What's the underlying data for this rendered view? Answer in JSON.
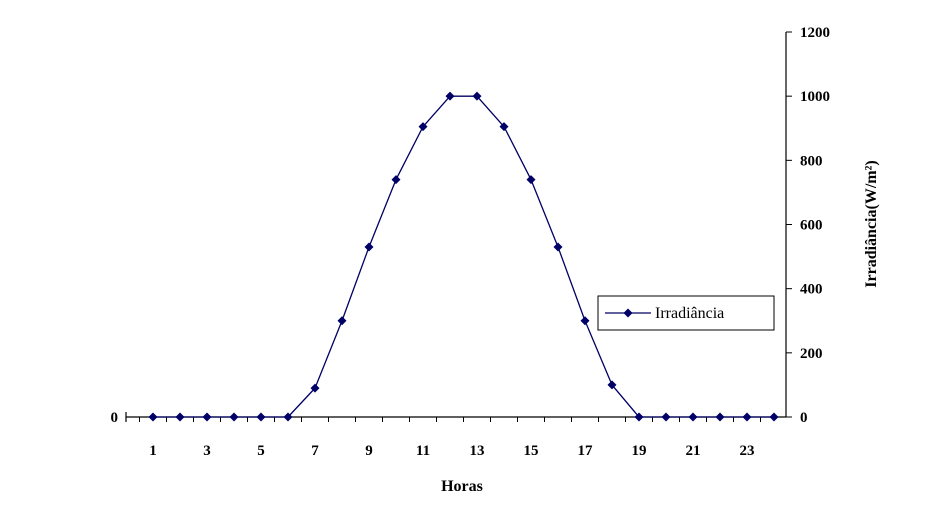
{
  "chart_data": {
    "type": "line",
    "title": "",
    "xlabel": "Horas",
    "ylabel": "Irradiância(W/m²)",
    "x": [
      1,
      2,
      3,
      4,
      5,
      6,
      7,
      8,
      9,
      10,
      11,
      12,
      13,
      14,
      15,
      16,
      17,
      18,
      19,
      20,
      21,
      22,
      23,
      24
    ],
    "x_tick_labels": [
      "1",
      "3",
      "5",
      "7",
      "9",
      "11",
      "13",
      "15",
      "17",
      "19",
      "21",
      "23"
    ],
    "y_ticks_right": [
      "0",
      "200",
      "400",
      "600",
      "800",
      "1000",
      "1200"
    ],
    "y_tick_left": "0",
    "ylim": [
      0,
      1200
    ],
    "series": [
      {
        "name": "Irradiância",
        "values": [
          0,
          0,
          0,
          0,
          0,
          0,
          90,
          300,
          530,
          740,
          905,
          1000,
          1000,
          905,
          740,
          530,
          300,
          100,
          0,
          0,
          0,
          0,
          0,
          0
        ]
      }
    ],
    "legend_position": "right",
    "grid": false,
    "colors": {
      "series": "#000066",
      "axis": "#000000"
    }
  }
}
